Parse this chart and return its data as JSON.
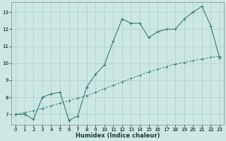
{
  "xlabel": "Humidex (Indice chaleur)",
  "background_color": "#cce8e4",
  "grid_color": "#aaccc8",
  "line_color": "#2e7d6e",
  "xlim": [
    -0.5,
    23.5
  ],
  "ylim": [
    6.4,
    13.6
  ],
  "xticks": [
    0,
    1,
    2,
    3,
    4,
    5,
    6,
    7,
    8,
    9,
    10,
    11,
    12,
    13,
    14,
    15,
    16,
    17,
    18,
    19,
    20,
    21,
    22,
    23
  ],
  "yticks": [
    7,
    8,
    9,
    10,
    11,
    12,
    13
  ],
  "line1_x": [
    0,
    1,
    2,
    3,
    4,
    5,
    6,
    7,
    8,
    9,
    10,
    11,
    12,
    13,
    14,
    15,
    16,
    17,
    18,
    19,
    20,
    21,
    22,
    23
  ],
  "line1_y": [
    7.0,
    7.0,
    6.7,
    8.0,
    8.2,
    8.3,
    6.65,
    6.9,
    8.6,
    9.35,
    9.9,
    11.3,
    12.6,
    12.35,
    12.35,
    11.5,
    11.85,
    12.0,
    12.0,
    12.6,
    13.0,
    13.35,
    12.2,
    10.3
  ],
  "line2_x": [
    0,
    1,
    2,
    3,
    4,
    5,
    6,
    7,
    8,
    9,
    10,
    11,
    12,
    13,
    14,
    15,
    16,
    17,
    18,
    19,
    20,
    21,
    22,
    23
  ],
  "line2_y": [
    7.0,
    7.1,
    7.2,
    7.35,
    7.5,
    7.65,
    7.8,
    7.95,
    8.1,
    8.3,
    8.5,
    8.7,
    8.9,
    9.1,
    9.3,
    9.5,
    9.65,
    9.8,
    9.95,
    10.05,
    10.15,
    10.25,
    10.35,
    10.4
  ]
}
